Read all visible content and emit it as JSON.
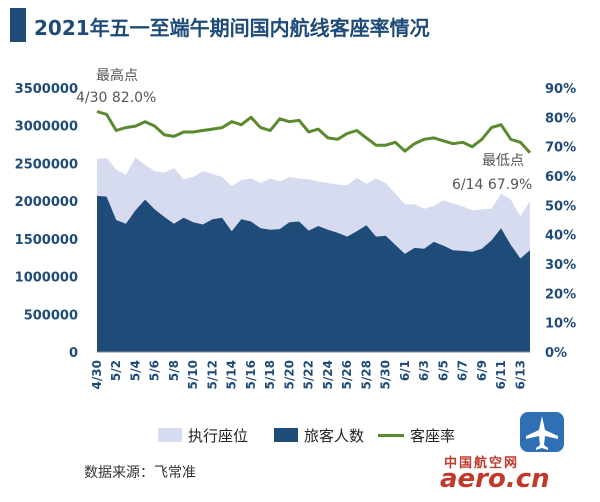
{
  "title": "2021年五一至端午期间国内航线客座率情况",
  "source": "数据来源：飞常准",
  "watermark": {
    "top_text": "中国航空网",
    "bottom_text": "aero.cn"
  },
  "colors": {
    "seats": "#d7dbf0",
    "passengers": "#1e4b78",
    "load": "#5a8a2e",
    "text": "#1e4b78",
    "title": "#1e4b78"
  },
  "chart_data": {
    "type": "area",
    "categories": [
      "4/30",
      "5/1",
      "5/2",
      "5/3",
      "5/4",
      "5/5",
      "5/6",
      "5/7",
      "5/8",
      "5/9",
      "5/10",
      "5/11",
      "5/12",
      "5/13",
      "5/14",
      "5/15",
      "5/16",
      "5/17",
      "5/18",
      "5/19",
      "5/20",
      "5/21",
      "5/22",
      "5/23",
      "5/24",
      "5/25",
      "5/26",
      "5/27",
      "5/28",
      "5/29",
      "5/30",
      "5/31",
      "6/1",
      "6/2",
      "6/3",
      "6/4",
      "6/5",
      "6/6",
      "6/7",
      "6/8",
      "6/9",
      "6/10",
      "6/11",
      "6/12",
      "6/13",
      "6/14"
    ],
    "x_tick_labels": [
      "4/30",
      "5/2",
      "5/4",
      "5/6",
      "5/8",
      "5/10",
      "5/12",
      "5/14",
      "5/16",
      "5/18",
      "5/20",
      "5/22",
      "5/24",
      "5/26",
      "5/28",
      "5/30",
      "6/1",
      "6/3",
      "6/5",
      "6/7",
      "6/9",
      "6/11",
      "6/13"
    ],
    "series": [
      {
        "name": "执行座位",
        "axis": "left",
        "type": "area",
        "values": [
          2560000,
          2570000,
          2420000,
          2350000,
          2580000,
          2480000,
          2400000,
          2380000,
          2440000,
          2290000,
          2320000,
          2400000,
          2360000,
          2320000,
          2200000,
          2280000,
          2300000,
          2240000,
          2300000,
          2260000,
          2320000,
          2300000,
          2290000,
          2260000,
          2240000,
          2220000,
          2210000,
          2310000,
          2230000,
          2300000,
          2240000,
          2100000,
          1960000,
          1960000,
          1900000,
          1940000,
          2010000,
          1970000,
          1930000,
          1880000,
          1890000,
          1900000,
          2100000,
          2020000,
          1800000,
          2000000
        ]
      },
      {
        "name": "旅客人数",
        "axis": "left",
        "type": "area",
        "values": [
          2070000,
          2060000,
          1750000,
          1700000,
          1880000,
          2020000,
          1890000,
          1790000,
          1700000,
          1780000,
          1720000,
          1690000,
          1760000,
          1780000,
          1600000,
          1760000,
          1730000,
          1640000,
          1620000,
          1630000,
          1720000,
          1730000,
          1610000,
          1670000,
          1620000,
          1580000,
          1530000,
          1600000,
          1680000,
          1530000,
          1540000,
          1420000,
          1300000,
          1380000,
          1370000,
          1460000,
          1410000,
          1350000,
          1340000,
          1330000,
          1370000,
          1480000,
          1640000,
          1420000,
          1240000,
          1350000
        ]
      },
      {
        "name": "客座率",
        "axis": "right",
        "type": "line",
        "values": [
          82.0,
          81.0,
          75.5,
          76.5,
          77.0,
          78.5,
          77.0,
          74.0,
          73.5,
          75.0,
          75.0,
          75.5,
          76.0,
          76.5,
          78.5,
          77.5,
          80.0,
          76.5,
          75.5,
          79.5,
          78.5,
          79.0,
          75.0,
          76.0,
          73.0,
          72.5,
          74.5,
          75.5,
          73.0,
          70.5,
          70.5,
          71.5,
          68.5,
          71.0,
          72.5,
          73.0,
          72.0,
          71.0,
          71.5,
          70.0,
          72.5,
          76.5,
          77.5,
          72.5,
          71.5,
          67.9
        ]
      }
    ],
    "y_left": {
      "min": 0,
      "max": 3500000,
      "ticks": [
        "0",
        "500000",
        "1000000",
        "1500000",
        "2000000",
        "2500000",
        "3000000",
        "3500000"
      ]
    },
    "y_right": {
      "min": 0,
      "max": 90,
      "ticks": [
        "0%",
        "10%",
        "20%",
        "30%",
        "40%",
        "50%",
        "60%",
        "70%",
        "80%",
        "90%"
      ]
    },
    "annotations": [
      {
        "label": "最高点",
        "text": "4/30 82.0%",
        "x_index": 0
      },
      {
        "label": "最低点",
        "text": "6/14 67.9%",
        "x_index": 45
      }
    ],
    "legend": [
      "执行座位",
      "旅客人数",
      "客座率"
    ],
    "grid": false,
    "legend_position": "bottom"
  }
}
